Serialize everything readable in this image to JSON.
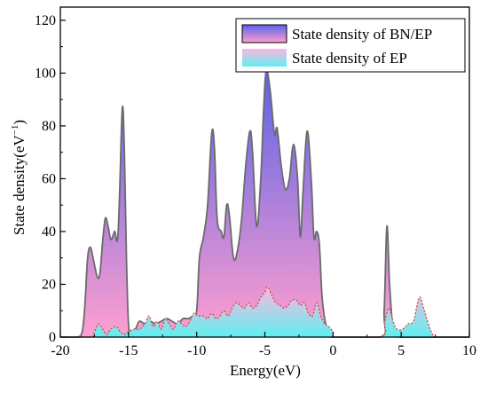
{
  "chart_data": {
    "type": "area",
    "xlabel": "Energy(eV)",
    "ylabel_base": "State density(eV",
    "ylabel_exp": "−1",
    "ylabel_close": ")",
    "xlim": [
      -20,
      10
    ],
    "ylim": [
      0,
      125
    ],
    "x_ticks": [
      -20,
      -15,
      -10,
      -5,
      0,
      5,
      10
    ],
    "y_ticks": [
      0,
      20,
      40,
      60,
      80,
      100,
      120
    ],
    "legend_position": "top-right",
    "grid": false,
    "series": [
      {
        "name": "State density of BN/EP",
        "line_color": "#6b6b6b",
        "fill_top": "#5a63e8",
        "fill_bottom": "#ff9fcf",
        "points": [
          [
            -20,
            0
          ],
          [
            -18.8,
            0
          ],
          [
            -18.4,
            2
          ],
          [
            -18.2,
            12
          ],
          [
            -18.0,
            30
          ],
          [
            -17.8,
            34
          ],
          [
            -17.6,
            30
          ],
          [
            -17.3,
            23
          ],
          [
            -17.1,
            24
          ],
          [
            -16.9,
            36
          ],
          [
            -16.7,
            45
          ],
          [
            -16.5,
            42
          ],
          [
            -16.3,
            37
          ],
          [
            -16.1,
            39
          ],
          [
            -16.0,
            40
          ],
          [
            -15.8,
            37
          ],
          [
            -15.65,
            55
          ],
          [
            -15.45,
            87
          ],
          [
            -15.3,
            70
          ],
          [
            -15.15,
            30
          ],
          [
            -15.0,
            5
          ],
          [
            -14.8,
            2
          ],
          [
            -14.5,
            3
          ],
          [
            -14.2,
            6
          ],
          [
            -13.8,
            5
          ],
          [
            -13.4,
            6
          ],
          [
            -13.0,
            5
          ],
          [
            -12.6,
            6
          ],
          [
            -12.2,
            7
          ],
          [
            -11.8,
            6
          ],
          [
            -11.4,
            5
          ],
          [
            -11.0,
            7
          ],
          [
            -10.6,
            7
          ],
          [
            -10.3,
            8
          ],
          [
            -10.0,
            10
          ],
          [
            -9.8,
            30
          ],
          [
            -9.5,
            38
          ],
          [
            -9.2,
            50
          ],
          [
            -8.9,
            77
          ],
          [
            -8.7,
            72
          ],
          [
            -8.5,
            45
          ],
          [
            -8.2,
            40
          ],
          [
            -8.0,
            38
          ],
          [
            -7.8,
            50
          ],
          [
            -7.6,
            46
          ],
          [
            -7.3,
            30
          ],
          [
            -7.0,
            33
          ],
          [
            -6.7,
            45
          ],
          [
            -6.4,
            65
          ],
          [
            -6.1,
            78
          ],
          [
            -5.9,
            70
          ],
          [
            -5.6,
            42
          ],
          [
            -5.3,
            60
          ],
          [
            -5.1,
            85
          ],
          [
            -4.9,
            101
          ],
          [
            -4.6,
            93
          ],
          [
            -4.3,
            77
          ],
          [
            -4.1,
            79
          ],
          [
            -3.8,
            65
          ],
          [
            -3.5,
            56
          ],
          [
            -3.2,
            60
          ],
          [
            -2.9,
            73
          ],
          [
            -2.6,
            60
          ],
          [
            -2.4,
            38
          ],
          [
            -2.2,
            55
          ],
          [
            -1.9,
            78
          ],
          [
            -1.6,
            60
          ],
          [
            -1.4,
            38
          ],
          [
            -1.2,
            40
          ],
          [
            -1.0,
            35
          ],
          [
            -0.8,
            15
          ],
          [
            -0.5,
            4
          ],
          [
            -0.2,
            1
          ],
          [
            0,
            0
          ],
          [
            3.5,
            0
          ],
          [
            3.75,
            10
          ],
          [
            3.95,
            42
          ],
          [
            4.15,
            20
          ],
          [
            4.4,
            3
          ],
          [
            4.7,
            1
          ],
          [
            5.0,
            0
          ],
          [
            10,
            0
          ]
        ]
      },
      {
        "name": "State density of EP",
        "line_color": "#e04848",
        "fill_top": "#ffb6e0",
        "fill_bottom": "#5ef0f0",
        "points": [
          [
            -20,
            0
          ],
          [
            -17.8,
            0
          ],
          [
            -17.5,
            2
          ],
          [
            -17.2,
            5
          ],
          [
            -16.9,
            3
          ],
          [
            -16.6,
            1
          ],
          [
            -16.3,
            3
          ],
          [
            -15.9,
            4
          ],
          [
            -15.6,
            2
          ],
          [
            -15.3,
            1
          ],
          [
            -15.0,
            2
          ],
          [
            -14.6,
            3
          ],
          [
            -14.2,
            3
          ],
          [
            -13.8,
            5
          ],
          [
            -13.5,
            8
          ],
          [
            -13.2,
            4
          ],
          [
            -12.9,
            6
          ],
          [
            -12.6,
            3
          ],
          [
            -12.3,
            7
          ],
          [
            -12.0,
            5
          ],
          [
            -11.7,
            3
          ],
          [
            -11.4,
            6
          ],
          [
            -11.1,
            5
          ],
          [
            -10.8,
            4
          ],
          [
            -10.5,
            6
          ],
          [
            -10.2,
            9
          ],
          [
            -9.9,
            8
          ],
          [
            -9.5,
            8
          ],
          [
            -9.2,
            7
          ],
          [
            -8.9,
            9
          ],
          [
            -8.6,
            7
          ],
          [
            -8.3,
            8
          ],
          [
            -8.0,
            10
          ],
          [
            -7.7,
            8
          ],
          [
            -7.4,
            11
          ],
          [
            -7.1,
            13
          ],
          [
            -6.8,
            12
          ],
          [
            -6.5,
            11
          ],
          [
            -6.2,
            13
          ],
          [
            -5.9,
            11
          ],
          [
            -5.6,
            12
          ],
          [
            -5.3,
            15
          ],
          [
            -5.0,
            17
          ],
          [
            -4.8,
            19
          ],
          [
            -4.5,
            16
          ],
          [
            -4.2,
            13
          ],
          [
            -3.9,
            12
          ],
          [
            -3.6,
            11
          ],
          [
            -3.3,
            12
          ],
          [
            -3.0,
            14
          ],
          [
            -2.7,
            14
          ],
          [
            -2.4,
            12
          ],
          [
            -2.1,
            13
          ],
          [
            -1.8,
            9
          ],
          [
            -1.5,
            8
          ],
          [
            -1.2,
            13
          ],
          [
            -0.9,
            8
          ],
          [
            -0.6,
            5
          ],
          [
            -0.3,
            4
          ],
          [
            0,
            2
          ],
          [
            0.3,
            0
          ],
          [
            3.5,
            0
          ],
          [
            3.8,
            6
          ],
          [
            4.1,
            11
          ],
          [
            4.4,
            6
          ],
          [
            4.7,
            3
          ],
          [
            5.1,
            3
          ],
          [
            5.5,
            5
          ],
          [
            5.9,
            6
          ],
          [
            6.2,
            13
          ],
          [
            6.4,
            15
          ],
          [
            6.7,
            10
          ],
          [
            7.0,
            5
          ],
          [
            7.3,
            1
          ],
          [
            7.6,
            0
          ],
          [
            10,
            0
          ]
        ]
      }
    ]
  }
}
